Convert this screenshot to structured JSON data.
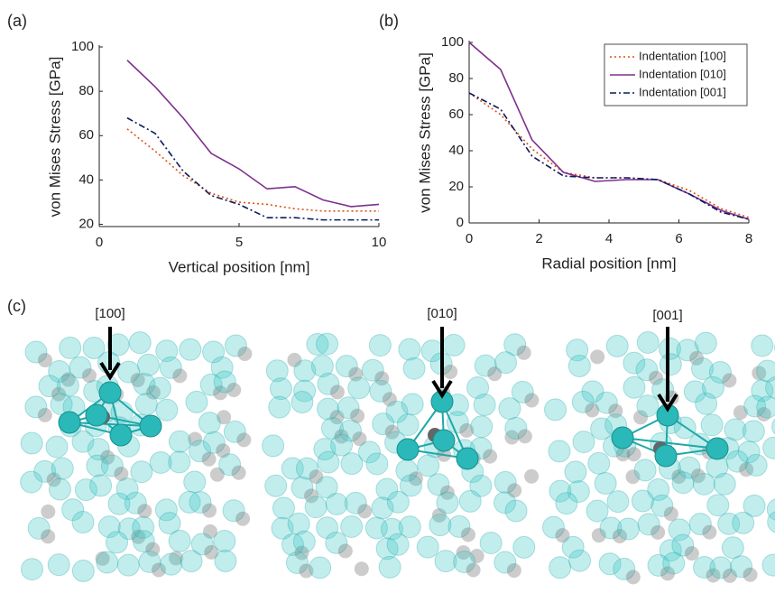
{
  "chart_data": [
    {
      "type": "line",
      "panel": "(a)",
      "x_label": "Vertical position [nm]",
      "y_label": "von Mises Stress [GPa]",
      "x": [
        1,
        2,
        3,
        4,
        5,
        6,
        7,
        8,
        9,
        10
      ],
      "series": [
        {
          "color": "#d95319",
          "dash": "dotted",
          "values": [
            63,
            53,
            42,
            34,
            30,
            29,
            27,
            26,
            26,
            26
          ]
        },
        {
          "color": "#7e2f8e",
          "dash": "solid",
          "values": [
            94,
            82,
            68,
            52,
            45,
            36,
            37,
            31,
            28,
            29
          ]
        },
        {
          "color": "#0b1a5c",
          "dash": "dashdot",
          "values": [
            68,
            61,
            44,
            33,
            29,
            23,
            23,
            22,
            22,
            22
          ]
        }
      ],
      "xlim": [
        0,
        10
      ],
      "xticks": [
        0,
        5,
        10
      ],
      "ylim": [
        19,
        100
      ],
      "yticks": [
        20,
        40,
        60,
        80,
        100
      ],
      "grid": false
    },
    {
      "type": "line",
      "panel": "(b)",
      "x_label": "Radial position [nm]",
      "y_label": "von Mises Stress [GPa]",
      "x": [
        0,
        0.9,
        1.8,
        2.7,
        3.6,
        4.5,
        5.4,
        6.3,
        7.2,
        8
      ],
      "series": [
        {
          "name": "Indentation [100]",
          "color": "#d95319",
          "dash": "dotted",
          "values": [
            72,
            60,
            41,
            28,
            25,
            25,
            24,
            18,
            8,
            3
          ]
        },
        {
          "name": "Indentation [010]",
          "color": "#7e2f8e",
          "dash": "solid",
          "values": [
            100,
            85,
            46,
            28,
            23,
            24,
            24,
            16,
            7,
            2
          ]
        },
        {
          "name": "Indentation [001]",
          "color": "#0b1a5c",
          "dash": "dashdot",
          "values": [
            72,
            63,
            37,
            26,
            25,
            25,
            24,
            16,
            6,
            2
          ]
        }
      ],
      "xlim": [
        0,
        8
      ],
      "xticks": [
        0,
        2,
        4,
        6,
        8
      ],
      "ylim": [
        0,
        100
      ],
      "yticks": [
        0,
        20,
        40,
        60,
        80,
        100
      ],
      "grid": false,
      "legend": "upper right"
    }
  ],
  "structures": {
    "panel": "(c)",
    "directions": [
      "[100]",
      "[010]",
      "[001]"
    ]
  }
}
